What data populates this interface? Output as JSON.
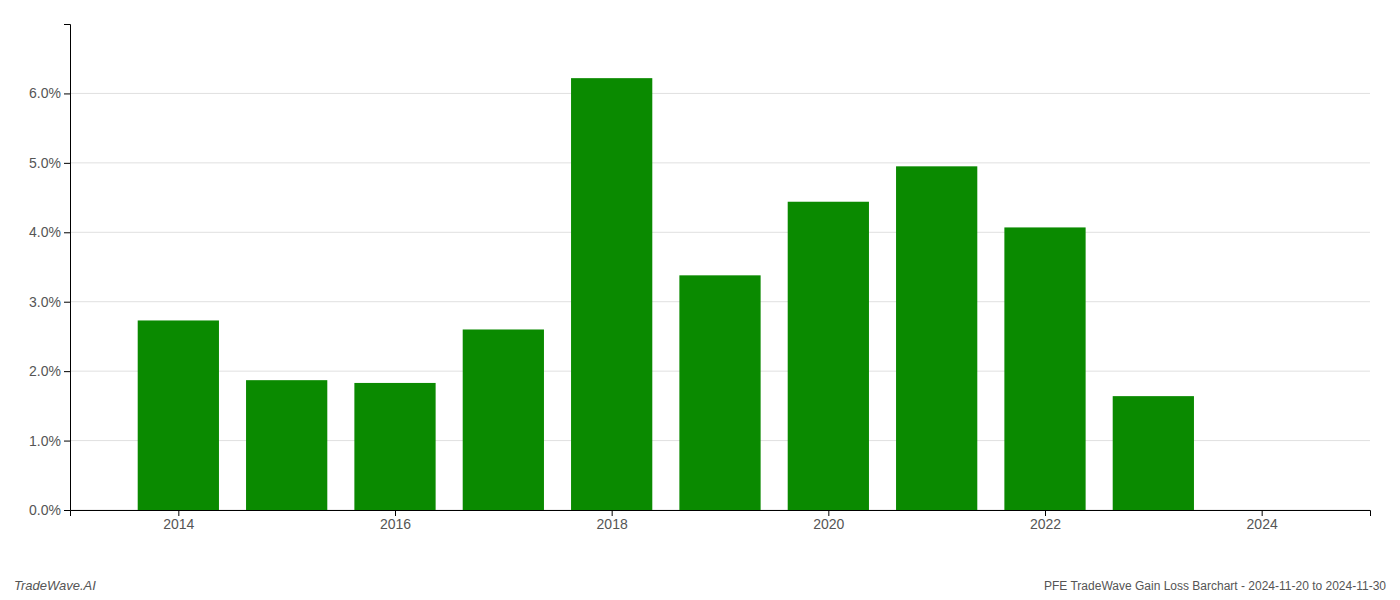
{
  "chart_data": {
    "type": "bar",
    "title": "PFE TradeWave Gain Loss Barchart - 2024-11-20 to 2024-11-30",
    "annotations": [
      "TradeWave.AI"
    ],
    "x": [
      2014,
      2015,
      2016,
      2017,
      2018,
      2019,
      2020,
      2021,
      2022,
      2023
    ],
    "values": [
      0.0273,
      0.0187,
      0.0183,
      0.026,
      0.0622,
      0.0338,
      0.0444,
      0.0495,
      0.0407,
      0.0164
    ],
    "color": "#0a8a00",
    "xlim": [
      2013.0,
      2025.0
    ],
    "xticks": [
      2014,
      2016,
      2018,
      2020,
      2022,
      2024
    ],
    "ylim": [
      0,
      0.07
    ],
    "yticks": [
      {
        "value": 0.0,
        "label": "0.0%"
      },
      {
        "value": 0.01,
        "label": "1.0%"
      },
      {
        "value": 0.02,
        "label": "2.0%"
      },
      {
        "value": 0.03,
        "label": "3.0%"
      },
      {
        "value": 0.04,
        "label": "4.0%"
      },
      {
        "value": 0.05,
        "label": "5.0%"
      },
      {
        "value": 0.06,
        "label": "6.0%"
      }
    ],
    "grid": true
  }
}
